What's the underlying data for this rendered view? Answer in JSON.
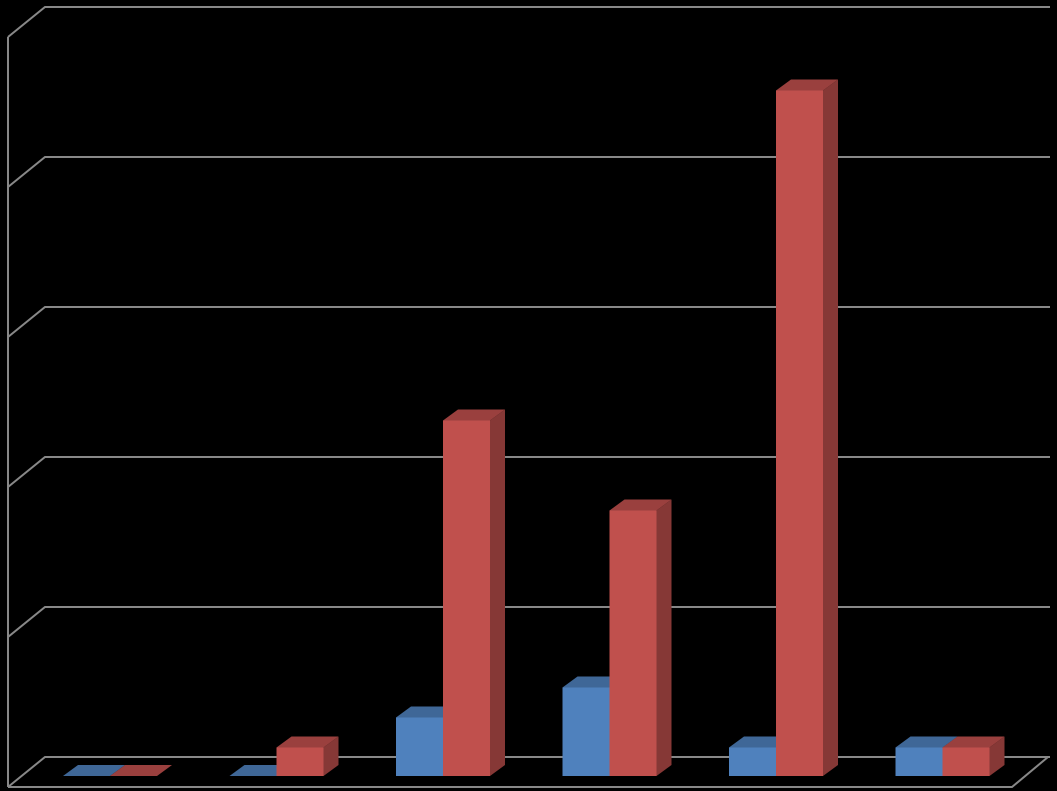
{
  "chart_data": {
    "type": "bar3d",
    "categories": [
      null,
      null,
      null,
      null,
      null,
      null
    ],
    "series": [
      {
        "color": "#4f81bd",
        "values": [
          0,
          0,
          0.39,
          0.59,
          0.19,
          0.19
        ]
      },
      {
        "color": "#c0504d",
        "values": [
          0,
          0.19,
          2.37,
          1.77,
          4.57,
          0.19
        ]
      }
    ],
    "ylim": [
      0,
      5
    ],
    "yticks": [
      0,
      1,
      2,
      3,
      4,
      5
    ],
    "grid": true
  }
}
